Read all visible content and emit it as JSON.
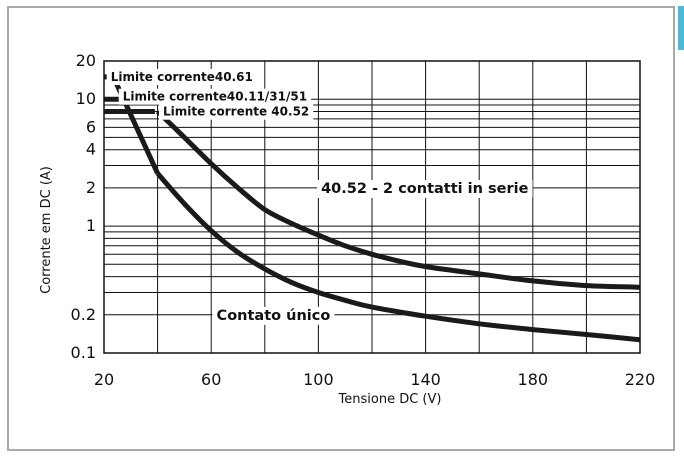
{
  "chart_data": {
    "type": "line",
    "xlabel": "Tensione DC (V)",
    "ylabel": "Corrente em DC (A)",
    "xlim": [
      20,
      220
    ],
    "ylim": [
      0.1,
      20
    ],
    "y_scale": "log",
    "grid": true,
    "x_ticks": [
      20,
      60,
      100,
      140,
      180,
      220
    ],
    "y_ticks": [
      {
        "value": 20,
        "label": "20"
      },
      {
        "value": 10,
        "label": "10"
      },
      {
        "value": 6,
        "label": "6"
      },
      {
        "value": 4,
        "label": "4"
      },
      {
        "value": 2,
        "label": "2"
      },
      {
        "value": 1,
        "label": "1"
      },
      {
        "value": 0.2,
        "label": "0.2"
      },
      {
        "value": 0.1,
        "label": "0.1"
      }
    ],
    "series": [
      {
        "name": "Contato único",
        "x": [
          40,
          50,
          60,
          70,
          80,
          90,
          100,
          110,
          120,
          140,
          160,
          180,
          200,
          220
        ],
        "y": [
          2.6,
          1.5,
          0.92,
          0.62,
          0.46,
          0.36,
          0.3,
          0.26,
          0.23,
          0.195,
          0.17,
          0.153,
          0.14,
          0.127
        ]
      },
      {
        "name": "40.52 - 2 contatti in serie",
        "x": [
          40,
          50,
          60,
          70,
          80,
          90,
          100,
          110,
          120,
          130,
          140,
          160,
          180,
          200,
          220
        ],
        "y": [
          8,
          5,
          3.1,
          2.0,
          1.35,
          1.05,
          0.85,
          0.7,
          0.6,
          0.53,
          0.48,
          0.42,
          0.37,
          0.34,
          0.33
        ]
      },
      {
        "name": "Limite corrente40.61",
        "x": [
          20,
          23.5,
          40
        ],
        "y": [
          15,
          15,
          2.6
        ]
      },
      {
        "name": "Limite corrente40.11/31/51",
        "x": [
          20,
          26
        ],
        "y": [
          10,
          10
        ]
      },
      {
        "name": "Limite corrente 40.52",
        "x": [
          20,
          39
        ],
        "y": [
          8,
          8
        ]
      }
    ],
    "annotations": [
      {
        "text": "Limite corrente40.61",
        "x": 22.5,
        "y": 15
      },
      {
        "text": "Limite corrente40.11/31/51",
        "x": 27,
        "y": 10.5
      },
      {
        "text": "Limite corrente 40.52",
        "x": 42,
        "y": 8
      },
      {
        "text": "40.52 - 2 contatti in serie",
        "x": 101,
        "y": 2.0
      },
      {
        "text": "Contato único",
        "x": 62,
        "y": 0.2
      }
    ]
  }
}
